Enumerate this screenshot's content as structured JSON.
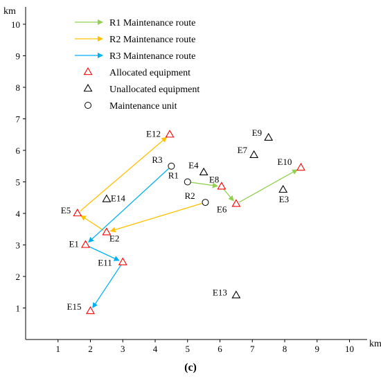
{
  "chart_data": {
    "type": "scatter",
    "xlabel": "km",
    "ylabel": "km",
    "xlim": [
      0,
      10
    ],
    "ylim": [
      0,
      10
    ],
    "x_ticks": [
      1,
      2,
      3,
      4,
      5,
      6,
      7,
      8,
      9,
      10
    ],
    "y_ticks": [
      1,
      2,
      3,
      4,
      5,
      6,
      7,
      8,
      9,
      10
    ],
    "grid": false,
    "legend_position": "top-left",
    "caption": "(c)",
    "colors": {
      "route_R1": "#92d050",
      "route_R2": "#ffc000",
      "route_R3": "#00b0f0",
      "allocated": "#ff0000",
      "unallocated": "#000000",
      "unit": "#000000"
    },
    "legend": [
      {
        "label": "R1 Maintenance route",
        "kind": "route",
        "series": "R1"
      },
      {
        "label": "R2 Maintenance route",
        "kind": "route",
        "series": "R2"
      },
      {
        "label": "R3 Maintenance route",
        "kind": "route",
        "series": "R3"
      },
      {
        "label": "Allocated equipment",
        "kind": "allocated"
      },
      {
        "label": "Unallocated equipment",
        "kind": "unallocated"
      },
      {
        "label": "Maintenance unit",
        "kind": "unit"
      }
    ],
    "maintenance_units": [
      {
        "label": "R1",
        "x": 5.0,
        "y": 5.0
      },
      {
        "label": "R2",
        "x": 5.55,
        "y": 4.35
      },
      {
        "label": "R3",
        "x": 4.5,
        "y": 5.5
      }
    ],
    "equipment": [
      {
        "label": "E1",
        "x": 1.85,
        "y": 3.0,
        "allocated": true
      },
      {
        "label": "E2",
        "x": 2.5,
        "y": 3.4,
        "allocated": true
      },
      {
        "label": "E3",
        "x": 7.95,
        "y": 4.75,
        "allocated": false
      },
      {
        "label": "E4",
        "x": 5.5,
        "y": 5.3,
        "allocated": false
      },
      {
        "label": "E5",
        "x": 1.6,
        "y": 4.0,
        "allocated": true
      },
      {
        "label": "E6",
        "x": 6.5,
        "y": 4.3,
        "allocated": true
      },
      {
        "label": "E7",
        "x": 7.05,
        "y": 5.85,
        "allocated": false
      },
      {
        "label": "E8",
        "x": 6.05,
        "y": 4.85,
        "allocated": true
      },
      {
        "label": "E9",
        "x": 7.5,
        "y": 6.4,
        "allocated": false
      },
      {
        "label": "E10",
        "x": 8.5,
        "y": 5.45,
        "allocated": true
      },
      {
        "label": "E11",
        "x": 3.0,
        "y": 2.45,
        "allocated": true
      },
      {
        "label": "E12",
        "x": 4.45,
        "y": 6.5,
        "allocated": true
      },
      {
        "label": "E13",
        "x": 6.5,
        "y": 1.4,
        "allocated": false
      },
      {
        "label": "E14",
        "x": 2.5,
        "y": 4.45,
        "allocated": false
      },
      {
        "label": "E15",
        "x": 2.0,
        "y": 0.9,
        "allocated": true
      }
    ],
    "routes": [
      {
        "name": "R1",
        "stops": [
          "R1",
          "E8",
          "E6",
          "E10"
        ]
      },
      {
        "name": "R2",
        "stops": [
          "R2",
          "E2",
          "E5",
          "E12"
        ]
      },
      {
        "name": "R3",
        "stops": [
          "R3",
          "E1",
          "E11",
          "E15"
        ]
      }
    ]
  }
}
